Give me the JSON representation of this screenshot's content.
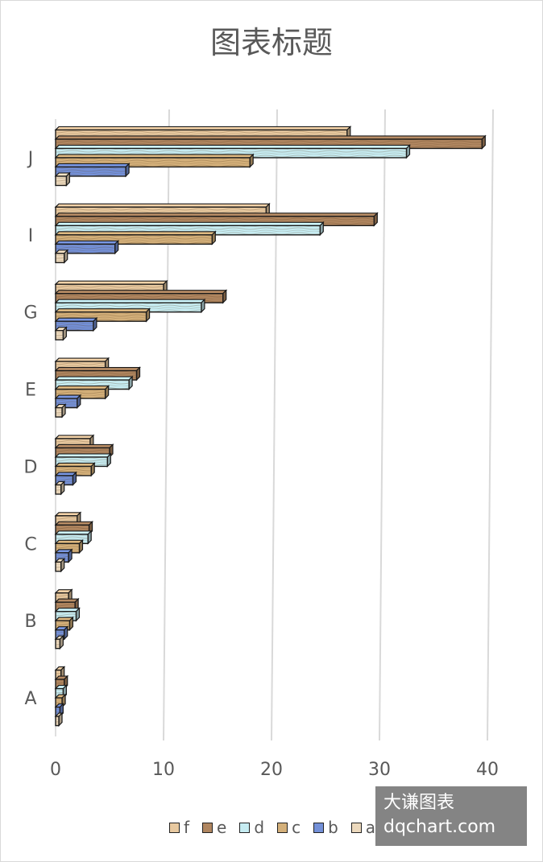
{
  "chart_data": {
    "type": "bar",
    "orientation": "horizontal",
    "title": "图表标题",
    "categories": [
      "A",
      "B",
      "C",
      "D",
      "E",
      "G",
      "I",
      "J"
    ],
    "series": [
      {
        "name": "f",
        "color": "#e8c9a0",
        "values": [
          0.5,
          1.2,
          2,
          3.2,
          4.6,
          10,
          19.5,
          27
        ]
      },
      {
        "name": "e",
        "color": "#b08660",
        "values": [
          0.8,
          1.8,
          3.1,
          5,
          7.5,
          15.5,
          29.5,
          39.5
        ]
      },
      {
        "name": "d",
        "color": "#c6ecf2",
        "values": [
          0.7,
          1.9,
          3,
          4.8,
          6.8,
          13.5,
          24.5,
          32.5
        ]
      },
      {
        "name": "c",
        "color": "#d4b07a",
        "values": [
          0.6,
          1.3,
          2.2,
          3.3,
          4.6,
          8.4,
          14.5,
          18
        ]
      },
      {
        "name": "b",
        "color": "#7390d8",
        "values": [
          0.4,
          0.8,
          1.2,
          1.6,
          2,
          3.5,
          5.5,
          6.5
        ]
      },
      {
        "name": "a",
        "color": "#ecd9bd",
        "values": [
          0.3,
          0.4,
          0.5,
          0.5,
          0.6,
          0.7,
          0.8,
          1
        ]
      }
    ],
    "xlim": [
      0,
      40
    ],
    "xticks": [
      0,
      10,
      20,
      30,
      40
    ],
    "grid": true,
    "legend": "bottom"
  },
  "watermark": {
    "line1": "大谦图表",
    "line2": "dqchart.com"
  }
}
